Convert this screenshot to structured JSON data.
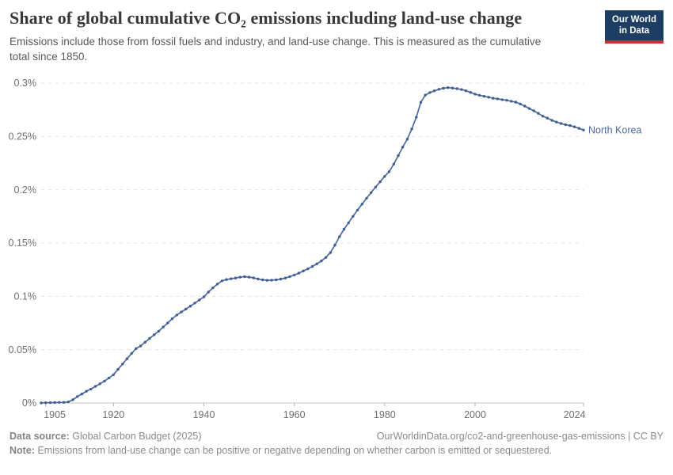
{
  "header": {
    "title": "Share of global cumulative CO₂ emissions including land-use change",
    "subtitle": "Emissions include those from fossil fuels and industry, and land-use change. This is measured as the cumulative total since 1850.",
    "logo": {
      "line1": "Our World",
      "line2": "in Data"
    }
  },
  "colors": {
    "series_line": "#4c6b9c",
    "series_dot": "#3f5f92",
    "entity_label": "#4c6b9c",
    "logo_bg": "#1d3d63",
    "logo_stripe": "#c23335"
  },
  "chart_data": {
    "type": "line",
    "title": "Share of global cumulative CO₂ emissions including land-use change",
    "xlabel": "",
    "ylabel": "",
    "unit": "%",
    "grid": true,
    "legend_position": "end-of-line",
    "xlim": [
      1904,
      2024
    ],
    "ylim": [
      0,
      0.3
    ],
    "x_ticks": [
      1905,
      1920,
      1940,
      1960,
      1980,
      2000,
      2024
    ],
    "x_tick_labels": [
      "1905",
      "1920",
      "1940",
      "1960",
      "1980",
      "2000",
      "2024"
    ],
    "y_ticks": [
      0,
      0.05,
      0.1,
      0.15,
      0.2,
      0.25,
      0.3
    ],
    "y_tick_labels": [
      "0%",
      "0.05%",
      "0.1%",
      "0.15%",
      "0.2%",
      "0.25%",
      "0.3%"
    ],
    "series": [
      {
        "name": "North Korea",
        "x": [
          1904,
          1905,
          1906,
          1907,
          1908,
          1909,
          1910,
          1911,
          1912,
          1913,
          1914,
          1915,
          1916,
          1917,
          1918,
          1919,
          1920,
          1921,
          1922,
          1923,
          1924,
          1925,
          1926,
          1927,
          1928,
          1929,
          1930,
          1931,
          1932,
          1933,
          1934,
          1935,
          1936,
          1937,
          1938,
          1939,
          1940,
          1941,
          1942,
          1943,
          1944,
          1945,
          1946,
          1947,
          1948,
          1949,
          1950,
          1951,
          1952,
          1953,
          1954,
          1955,
          1956,
          1957,
          1958,
          1959,
          1960,
          1961,
          1962,
          1963,
          1964,
          1965,
          1966,
          1967,
          1968,
          1969,
          1970,
          1971,
          1972,
          1973,
          1974,
          1975,
          1976,
          1977,
          1978,
          1979,
          1980,
          1981,
          1982,
          1983,
          1984,
          1985,
          1986,
          1987,
          1988,
          1989,
          1990,
          1991,
          1992,
          1993,
          1994,
          1995,
          1996,
          1997,
          1998,
          1999,
          2000,
          2001,
          2002,
          2003,
          2004,
          2005,
          2006,
          2007,
          2008,
          2009,
          2010,
          2011,
          2012,
          2013,
          2014,
          2015,
          2016,
          2017,
          2018,
          2019,
          2020,
          2021,
          2022,
          2023,
          2024
        ],
        "y": [
          0.0,
          0.0002,
          0.0003,
          0.0004,
          0.0005,
          0.0006,
          0.001,
          0.003,
          0.006,
          0.0085,
          0.011,
          0.013,
          0.0155,
          0.018,
          0.0205,
          0.0235,
          0.0265,
          0.0315,
          0.0365,
          0.0415,
          0.0465,
          0.051,
          0.0535,
          0.057,
          0.0605,
          0.064,
          0.0673,
          0.0712,
          0.075,
          0.079,
          0.0825,
          0.0853,
          0.088,
          0.0908,
          0.0937,
          0.0966,
          0.0995,
          0.104,
          0.108,
          0.1115,
          0.1145,
          0.1158,
          0.1165,
          0.1172,
          0.118,
          0.1185,
          0.118,
          0.1173,
          0.1163,
          0.1155,
          0.115,
          0.1152,
          0.1155,
          0.1162,
          0.1172,
          0.1185,
          0.12,
          0.1218,
          0.1238,
          0.1258,
          0.128,
          0.1305,
          0.1332,
          0.1365,
          0.141,
          0.148,
          0.156,
          0.163,
          0.169,
          0.175,
          0.181,
          0.1865,
          0.192,
          0.1973,
          0.2025,
          0.2075,
          0.2125,
          0.217,
          0.224,
          0.232,
          0.24,
          0.2475,
          0.257,
          0.268,
          0.282,
          0.2888,
          0.2912,
          0.2928,
          0.2942,
          0.2952,
          0.2958,
          0.2954,
          0.2948,
          0.294,
          0.2928,
          0.2913,
          0.2897,
          0.2886,
          0.2877,
          0.2868,
          0.2858,
          0.2852,
          0.2845,
          0.2839,
          0.283,
          0.2822,
          0.2805,
          0.2785,
          0.2762,
          0.274,
          0.2716,
          0.269,
          0.2672,
          0.2652,
          0.2635,
          0.2621,
          0.261,
          0.2602,
          0.259,
          0.2576,
          0.256
        ]
      }
    ]
  },
  "footer": {
    "source_label": "Data source:",
    "source_value": "Global Carbon Budget (2025)",
    "url": "OurWorldinData.org/co2-and-greenhouse-gas-emissions | CC BY",
    "note_label": "Note:",
    "note_value": "Emissions from land-use change can be positive or negative depending on whether carbon is emitted or sequestered."
  }
}
